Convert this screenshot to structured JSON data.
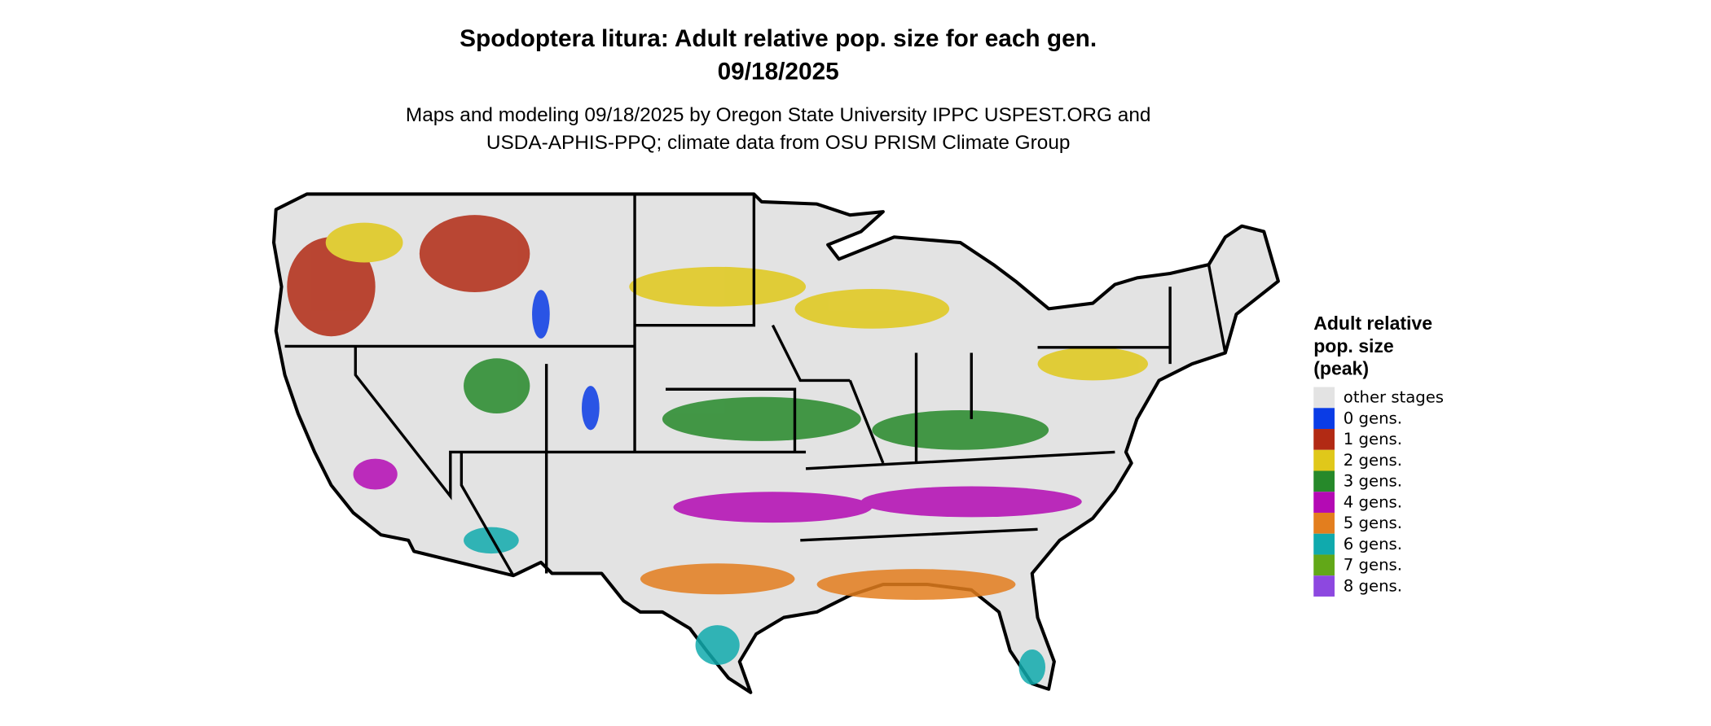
{
  "header": {
    "title_lines": [
      "Spodoptera litura: Adult relative pop. size for each gen.",
      "09/18/2025"
    ],
    "subtitle_lines": [
      "Maps and modeling 09/18/2025 by Oregon State University IPPC USPEST.ORG and",
      "USDA-APHIS-PPQ; climate data from OSU PRISM Climate Group"
    ]
  },
  "legend": {
    "title_lines": [
      "Adult relative",
      "pop. size",
      "(peak)"
    ],
    "items": [
      {
        "label": "other stages",
        "color": "#e3e3e3"
      },
      {
        "label": "0 gens.",
        "color": "#0a3ce6"
      },
      {
        "label": "1 gens.",
        "color": "#b22a14"
      },
      {
        "label": "2 gens.",
        "color": "#e0c81a"
      },
      {
        "label": "3 gens.",
        "color": "#26892a"
      },
      {
        "label": "4 gens.",
        "color": "#b40ab4"
      },
      {
        "label": "5 gens.",
        "color": "#e37e1e"
      },
      {
        "label": "6 gens.",
        "color": "#10aaad"
      },
      {
        "label": "7 gens.",
        "color": "#62a818"
      },
      {
        "label": "8 gens.",
        "color": "#8d48e0"
      }
    ]
  }
}
